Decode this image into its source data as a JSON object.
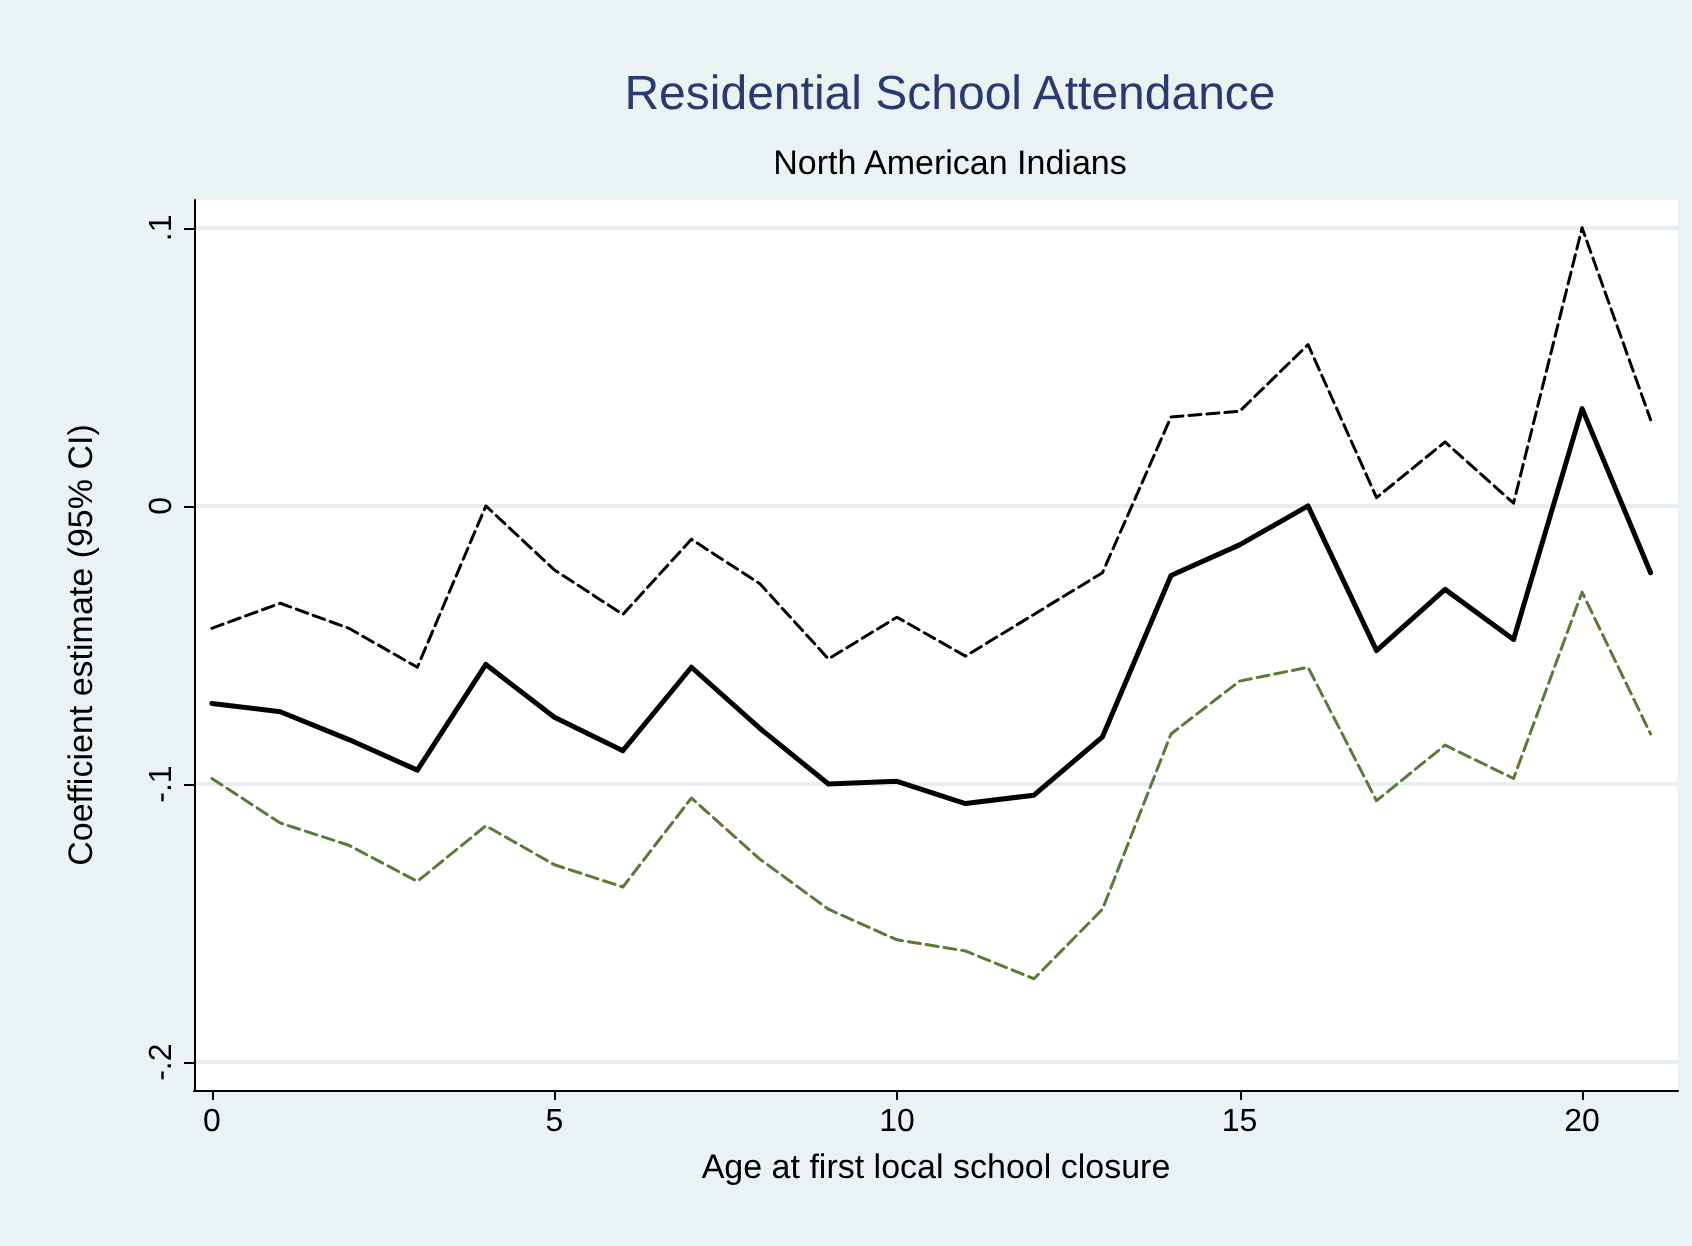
{
  "chart_data": {
    "type": "line",
    "title": "Residential School Attendance",
    "subtitle": "North American Indians",
    "xlabel": "Age at first local school closure",
    "ylabel": "Coefficient estimate (95% CI)",
    "x": [
      0,
      1,
      2,
      3,
      4,
      5,
      6,
      7,
      8,
      9,
      10,
      11,
      12,
      13,
      14,
      15,
      16,
      17,
      18,
      19,
      20,
      21
    ],
    "series": [
      {
        "color": "#000000",
        "line_style": "solid",
        "values": [
          -0.071,
          -0.074,
          -0.084,
          -0.095,
          -0.057,
          -0.076,
          -0.088,
          -0.058,
          -0.08,
          -0.1,
          -0.099,
          -0.107,
          -0.104,
          -0.083,
          -0.025,
          -0.014,
          0.0,
          -0.052,
          -0.03,
          -0.048,
          0.035,
          -0.024
        ]
      },
      {
        "color": "#000000",
        "line_style": "dashed",
        "values": [
          -0.044,
          -0.035,
          -0.044,
          -0.058,
          0.0,
          -0.023,
          -0.039,
          -0.012,
          -0.028,
          -0.055,
          -0.04,
          -0.054,
          -0.039,
          -0.024,
          0.032,
          0.034,
          0.058,
          0.003,
          0.023,
          0.001,
          0.1,
          0.031
        ]
      },
      {
        "color": "#5a7a3a",
        "line_style": "dashed",
        "values": [
          -0.098,
          -0.114,
          -0.122,
          -0.135,
          -0.115,
          -0.129,
          -0.137,
          -0.105,
          -0.127,
          -0.145,
          -0.156,
          -0.16,
          -0.17,
          -0.145,
          -0.082,
          -0.063,
          -0.058,
          -0.106,
          -0.086,
          -0.098,
          -0.031,
          -0.082
        ]
      }
    ],
    "xlim": [
      -0.26,
      21.4
    ],
    "xticks": [
      0,
      5,
      10,
      15,
      20
    ],
    "ylim": [
      -0.21,
      0.11
    ],
    "yticks": [
      {
        "value": -0.2,
        "label": "-.2"
      },
      {
        "value": -0.1,
        "label": "-.1"
      },
      {
        "value": 0,
        "label": "0"
      },
      {
        "value": 0.1,
        "label": ".1"
      }
    ],
    "grid": "y",
    "marker": "none"
  }
}
